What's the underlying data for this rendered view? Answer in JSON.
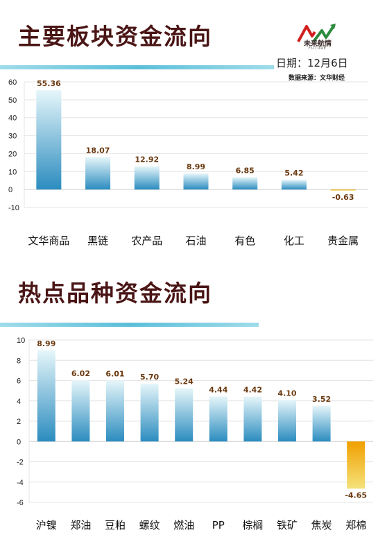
{
  "header": {
    "title_1": "主要板块资金流向",
    "title_2": "热点品种资金流向",
    "date": "日期：12月6日",
    "source": "数据来源：文华财经",
    "logo_name": "未来航情",
    "logo_sub": "FUTURE"
  },
  "colors": {
    "title": "#4a1515",
    "positive_bar_top": "#e6f6fa",
    "positive_bar_bottom": "#2b8cbf",
    "negative_bar_top": "#f0a000",
    "negative_bar_bottom": "#f5e27a",
    "deco_blue": "#5bbfd9"
  },
  "chart_data": [
    {
      "type": "bar",
      "categories": [
        "文华商品",
        "黑链",
        "农产品",
        "石油",
        "有色",
        "化工",
        "贵金属"
      ],
      "values": [
        55.36,
        18.07,
        12.92,
        8.99,
        6.85,
        5.42,
        -0.63
      ],
      "ylim": [
        -10,
        60
      ],
      "yticks": [
        -10,
        0,
        10,
        20,
        30,
        40,
        50,
        60
      ],
      "grid": true
    },
    {
      "type": "bar",
      "categories": [
        "沪镍",
        "郑油",
        "豆粕",
        "螺纹",
        "燃油",
        "PP",
        "棕榈",
        "铁矿",
        "焦炭",
        "郑棉"
      ],
      "values": [
        8.99,
        6.02,
        6.01,
        5.7,
        5.24,
        4.44,
        4.42,
        4.1,
        3.52,
        -4.65
      ],
      "ylim": [
        -6,
        10
      ],
      "yticks": [
        -6,
        -4,
        -2,
        0,
        2,
        4,
        6,
        8,
        10
      ],
      "grid": true
    }
  ]
}
